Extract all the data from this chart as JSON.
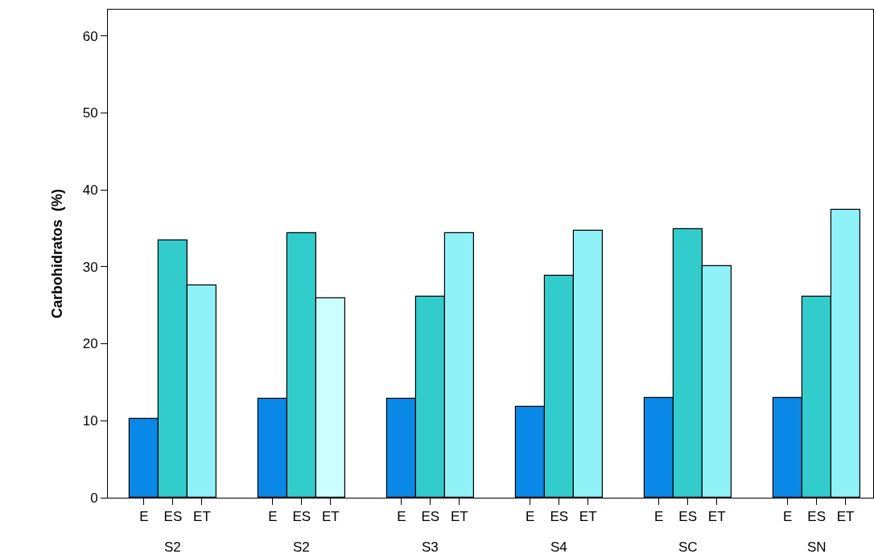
{
  "chart_data": {
    "type": "bar",
    "ylabel": "Carbohidratos  (%)",
    "categories": [
      "S2",
      "S2",
      "S3",
      "S4",
      "SC",
      "SN"
    ],
    "series": [
      {
        "name": "E",
        "color": "#0a88e8",
        "values": [
          10.2,
          12.8,
          12.8,
          11.8,
          13.0,
          13.0
        ]
      },
      {
        "name": "ES",
        "color": "#33cccc",
        "values": [
          33.4,
          34.4,
          26.1,
          28.8,
          34.9,
          26.1
        ]
      },
      {
        "name": "ET",
        "colors": [
          "#90f2f9",
          "#ccffff",
          "#90f2f9",
          "#90f2f9",
          "#90f2f9",
          "#90f2f9"
        ],
        "values": [
          27.6,
          25.9,
          34.4,
          34.7,
          30.1,
          37.4
        ]
      }
    ],
    "ylim": [
      0,
      63.4
    ],
    "yticks": [
      0,
      10,
      20,
      30,
      40,
      50,
      60
    ],
    "grid": false,
    "legend": "bottom"
  }
}
